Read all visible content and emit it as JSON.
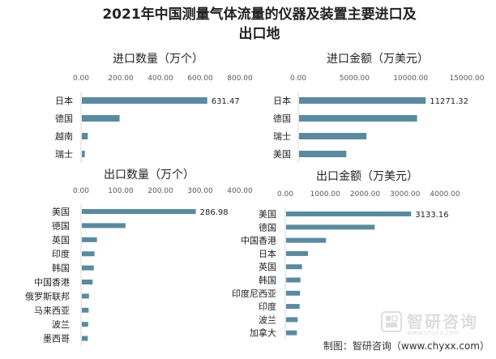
{
  "title_line1": "2021年中国测量气体流量的仪器及装置主要进口及",
  "title_line2": "出口地",
  "source": "制图：智研咨询（www.chyxx.com）",
  "watermark": {
    "text": "智研咨询",
    "url": "www.chyxx.com"
  },
  "colors": {
    "bar": "#5b8a9e",
    "text": "#222222",
    "axis": "#d9d9d9",
    "tick": "#595959"
  },
  "chart_data": [
    {
      "type": "bar",
      "orientation": "horizontal",
      "title": "进口数量（万个）",
      "categories": [
        "日本",
        "德国",
        "越南",
        "瑞士"
      ],
      "values": [
        631.47,
        190,
        30,
        15
      ],
      "data_labels": [
        "631.47",
        "",
        "",
        ""
      ],
      "xlim": [
        0,
        800
      ],
      "ticks": [
        "0.00",
        "200.00",
        "400.00",
        "600.00",
        "800.00"
      ]
    },
    {
      "type": "bar",
      "orientation": "horizontal",
      "title": "进口金额（万美元）",
      "categories": [
        "日本",
        "德国",
        "瑞士",
        "美国"
      ],
      "values": [
        11271.32,
        10500,
        6000,
        4200
      ],
      "data_labels": [
        "11271.32",
        "",
        "",
        ""
      ],
      "xlim": [
        0,
        15000
      ],
      "ticks": [
        "0.00",
        "5000.00",
        "10000.00",
        "15000.00"
      ]
    },
    {
      "type": "bar",
      "orientation": "horizontal",
      "title": "出口数量（万个）",
      "categories": [
        "美国",
        "德国",
        "英国",
        "印度",
        "韩国",
        "中国香港",
        "俄罗斯联邦",
        "马来西亚",
        "波兰",
        "墨西哥"
      ],
      "values": [
        286.98,
        110,
        38,
        32,
        30,
        27,
        18,
        17,
        16,
        15
      ],
      "data_labels": [
        "286.98",
        "",
        "",
        "",
        "",
        "",
        "",
        "",
        "",
        ""
      ],
      "xlim": [
        0,
        400
      ],
      "ticks": [
        "0.00",
        "100.00",
        "200.00",
        "300.00",
        "400.00"
      ]
    },
    {
      "type": "bar",
      "orientation": "horizontal",
      "title": "出口金额（万美元）",
      "categories": [
        "美国",
        "德国",
        "中国香港",
        "日本",
        "英国",
        "韩国",
        "印度尼西亚",
        "印度",
        "波兰",
        "加拿大"
      ],
      "values": [
        3133.16,
        2220,
        1000,
        550,
        400,
        360,
        350,
        340,
        290,
        270
      ],
      "data_labels": [
        "3133.16",
        "",
        "",
        "",
        "",
        "",
        "",
        "",
        "",
        ""
      ],
      "xlim": [
        0,
        4000
      ],
      "ticks": [
        "0.00",
        "1000.00",
        "2000.00",
        "3000.00",
        "4000.00"
      ]
    }
  ]
}
